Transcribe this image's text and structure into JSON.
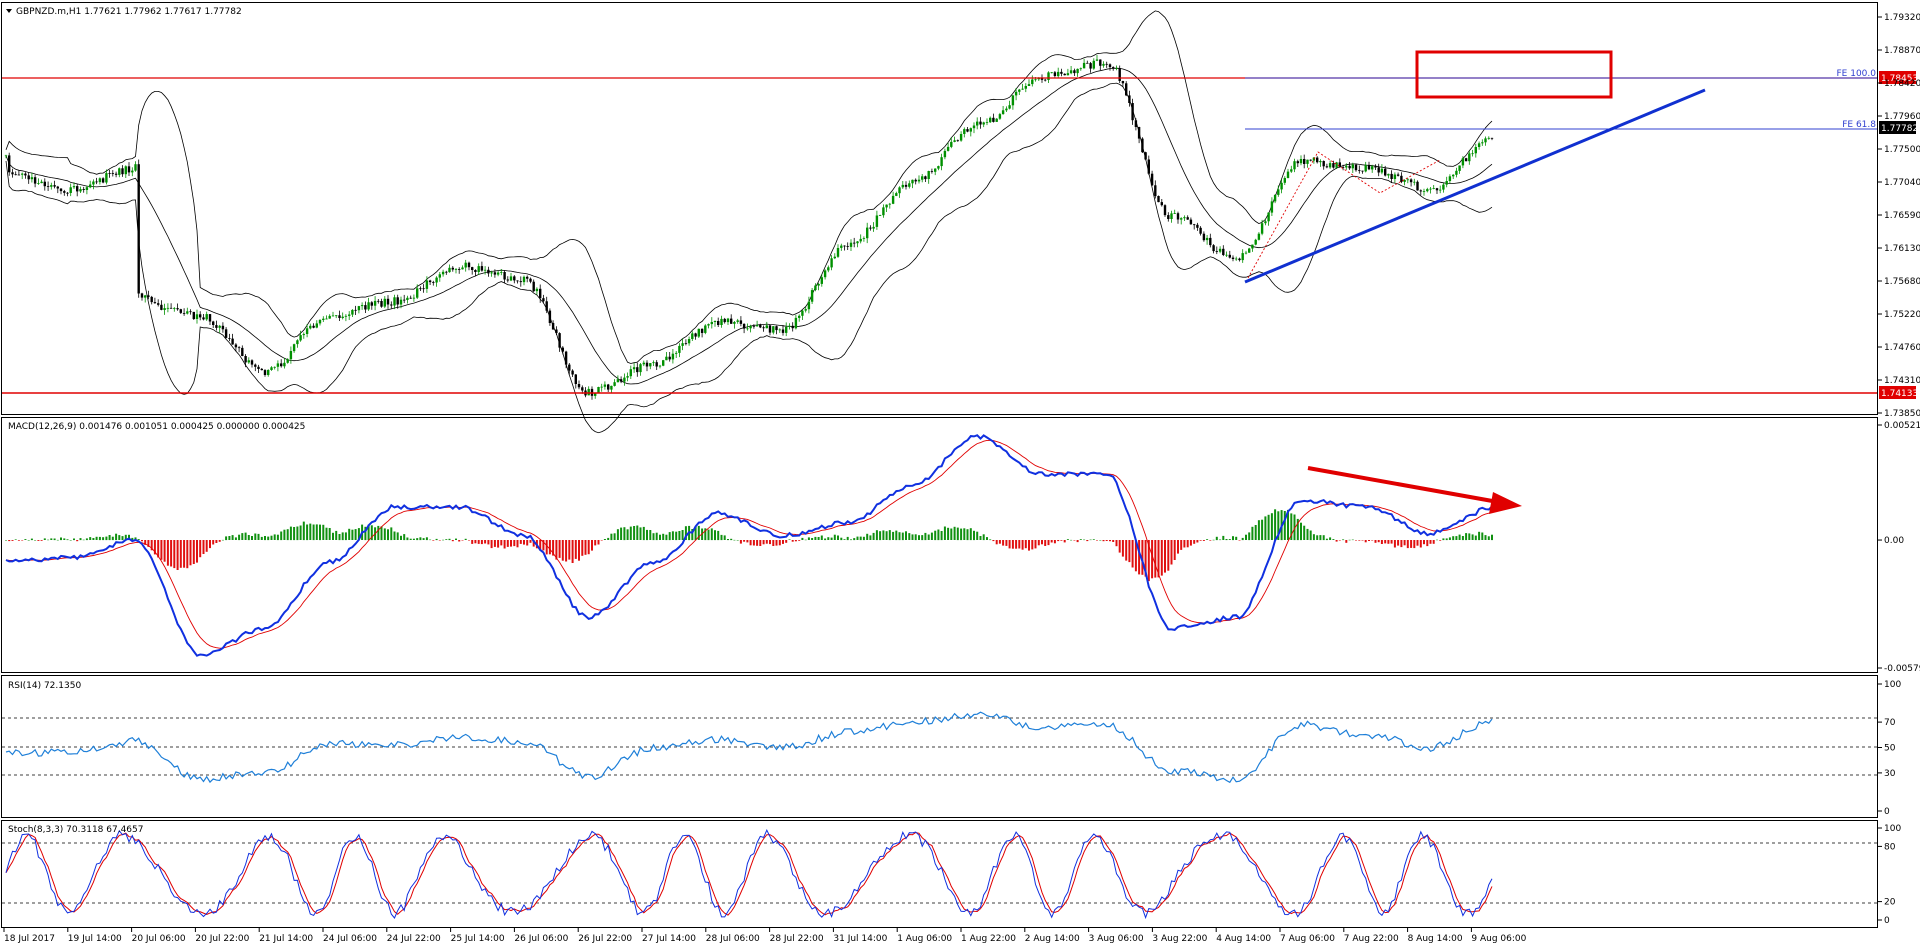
{
  "colors": {
    "background": "#ffffff",
    "axis": "#000000",
    "bull": "#009000",
    "bear": "#000000",
    "support_resistance": "#e00000",
    "trendline": "#1030d0",
    "fib_line": "#3040d0",
    "macd_line": "#1030e0",
    "signal_line": "#e00000",
    "hist_pos": "#109010",
    "hist_neg": "#e01010",
    "rsi_line": "#1e7fd8",
    "stoch_main": "#1030e0",
    "stoch_signal": "#e00000",
    "annotation": "#e00000",
    "bollinger": "#000000"
  },
  "main": {
    "title": "GBPNZD.m,H1  1.77621 1.77962 1.77617 1.77782",
    "y_ticks": [
      "1.79320",
      "1.78870",
      "1.78420",
      "1.77960",
      "1.77500",
      "1.77040",
      "1.76590",
      "1.76130",
      "1.75680",
      "1.75220",
      "1.74760",
      "1.74310",
      "1.73850"
    ],
    "level_labels": {
      "resistance": "1.78453",
      "current": "1.77782",
      "support": "1.74133"
    },
    "fib_labels": {
      "fe100": "FE 100.0",
      "fe618": "FE 61.8"
    }
  },
  "macd": {
    "title": "MACD(12,26,9) 0.001476 0.001051 0.000425 0.000000 0.000425",
    "y_ticks": [
      "0.005212",
      "0.00",
      "-0.005797"
    ]
  },
  "rsi": {
    "title": "RSI(14) 72.1350",
    "y_ticks": [
      "100",
      "70",
      "50",
      "30",
      "0"
    ]
  },
  "stoch": {
    "title": "Stoch(8,3,3) 70.3118 67.4657",
    "y_ticks": [
      "100",
      "80",
      "20",
      "0"
    ]
  },
  "x_ticks": [
    "18 Jul 2017",
    "19 Jul 14:00",
    "20 Jul 06:00",
    "20 Jul 22:00",
    "21 Jul 14:00",
    "24 Jul 06:00",
    "24 Jul 22:00",
    "25 Jul 14:00",
    "26 Jul 06:00",
    "26 Jul 22:00",
    "27 Jul 14:00",
    "28 Jul 06:00",
    "28 Jul 22:00",
    "31 Jul 14:00",
    "1 Aug 06:00",
    "1 Aug 22:00",
    "2 Aug 14:00",
    "3 Aug 06:00",
    "3 Aug 22:00",
    "4 Aug 14:00",
    "7 Aug 06:00",
    "7 Aug 22:00",
    "8 Aug 14:00",
    "9 Aug 06:00"
  ],
  "chart_data": {
    "type": "candlestick",
    "symbol": "GBPNZD.m",
    "timeframe": "H1",
    "ohlc_last": {
      "open": 1.77621,
      "high": 1.77962,
      "low": 1.77617,
      "close": 1.77782
    },
    "ylim": [
      1.7385,
      1.7955
    ],
    "horizontal_levels": {
      "resistance": 1.78453,
      "support": 1.74133
    },
    "fib_levels": {
      "FE 100.0": 1.78453,
      "FE 61.8": 1.7769
    },
    "close_path": [
      {
        "x": "18 Jul 2017",
        "y": 1.7745
      },
      {
        "x": "19 Jul 06:00",
        "y": 1.772
      },
      {
        "x": "19 Jul 14:00",
        "y": 1.77
      },
      {
        "x": "20 Jul 06:00",
        "y": 1.773
      },
      {
        "x": "20 Jul 14:00",
        "y": 1.764
      },
      {
        "x": "20 Jul 22:00",
        "y": 1.752
      },
      {
        "x": "21 Jul 14:00",
        "y": 1.744
      },
      {
        "x": "24 Jul 06:00",
        "y": 1.752
      },
      {
        "x": "24 Jul 22:00",
        "y": 1.754
      },
      {
        "x": "25 Jul 14:00",
        "y": 1.759
      },
      {
        "x": "26 Jul 06:00",
        "y": 1.757
      },
      {
        "x": "26 Jul 22:00",
        "y": 1.741
      },
      {
        "x": "27 Jul 14:00",
        "y": 1.745
      },
      {
        "x": "28 Jul 06:00",
        "y": 1.751
      },
      {
        "x": "28 Jul 22:00",
        "y": 1.75
      },
      {
        "x": "31 Jul 14:00",
        "y": 1.762
      },
      {
        "x": "1 Aug 06:00",
        "y": 1.771
      },
      {
        "x": "1 Aug 22:00",
        "y": 1.779
      },
      {
        "x": "2 Aug 14:00",
        "y": 1.786
      },
      {
        "x": "3 Aug 06:00",
        "y": 1.788
      },
      {
        "x": "3 Aug 22:00",
        "y": 1.766
      },
      {
        "x": "4 Aug 14:00",
        "y": 1.76
      },
      {
        "x": "7 Aug 06:00",
        "y": 1.774
      },
      {
        "x": "7 Aug 22:00",
        "y": 1.773
      },
      {
        "x": "8 Aug 14:00",
        "y": 1.77
      },
      {
        "x": "9 Aug 06:00",
        "y": 1.7778
      }
    ],
    "macd_path": [
      {
        "x": "18 Jul 2017",
        "y": -0.001
      },
      {
        "x": "19 Jul 14:00",
        "y": -0.0008
      },
      {
        "x": "20 Jul 06:00",
        "y": 0.0
      },
      {
        "x": "20 Jul 22:00",
        "y": -0.0052
      },
      {
        "x": "21 Jul 14:00",
        "y": -0.004
      },
      {
        "x": "24 Jul 06:00",
        "y": -0.001
      },
      {
        "x": "24 Jul 22:00",
        "y": 0.0015
      },
      {
        "x": "25 Jul 14:00",
        "y": 0.0015
      },
      {
        "x": "26 Jul 06:00",
        "y": 0.0002
      },
      {
        "x": "26 Jul 22:00",
        "y": -0.0035
      },
      {
        "x": "27 Jul 14:00",
        "y": -0.001
      },
      {
        "x": "28 Jul 06:00",
        "y": 0.0012
      },
      {
        "x": "28 Jul 22:00",
        "y": 0.0002
      },
      {
        "x": "31 Jul 14:00",
        "y": 0.0008
      },
      {
        "x": "1 Aug 06:00",
        "y": 0.0025
      },
      {
        "x": "1 Aug 22:00",
        "y": 0.0047
      },
      {
        "x": "2 Aug 14:00",
        "y": 0.003
      },
      {
        "x": "3 Aug 06:00",
        "y": 0.003
      },
      {
        "x": "3 Aug 22:00",
        "y": -0.004
      },
      {
        "x": "4 Aug 14:00",
        "y": -0.0035
      },
      {
        "x": "7 Aug 06:00",
        "y": 0.0018
      },
      {
        "x": "7 Aug 22:00",
        "y": 0.0015
      },
      {
        "x": "8 Aug 14:00",
        "y": 0.0003
      },
      {
        "x": "9 Aug 06:00",
        "y": 0.0015
      }
    ],
    "rsi_path": [
      {
        "x": "18 Jul 2017",
        "y": 45
      },
      {
        "x": "19 Jul 14:00",
        "y": 47
      },
      {
        "x": "20 Jul 06:00",
        "y": 55
      },
      {
        "x": "20 Jul 22:00",
        "y": 25
      },
      {
        "x": "21 Jul 14:00",
        "y": 30
      },
      {
        "x": "24 Jul 06:00",
        "y": 53
      },
      {
        "x": "24 Jul 22:00",
        "y": 52
      },
      {
        "x": "25 Jul 14:00",
        "y": 58
      },
      {
        "x": "26 Jul 06:00",
        "y": 55
      },
      {
        "x": "26 Jul 22:00",
        "y": 27
      },
      {
        "x": "27 Jul 14:00",
        "y": 50
      },
      {
        "x": "28 Jul 06:00",
        "y": 56
      },
      {
        "x": "28 Jul 22:00",
        "y": 50
      },
      {
        "x": "31 Jul 14:00",
        "y": 62
      },
      {
        "x": "1 Aug 06:00",
        "y": 70
      },
      {
        "x": "1 Aug 22:00",
        "y": 76
      },
      {
        "x": "2 Aug 14:00",
        "y": 66
      },
      {
        "x": "3 Aug 06:00",
        "y": 68
      },
      {
        "x": "3 Aug 22:00",
        "y": 32
      },
      {
        "x": "4 Aug 14:00",
        "y": 25
      },
      {
        "x": "7 Aug 06:00",
        "y": 68
      },
      {
        "x": "7 Aug 22:00",
        "y": 60
      },
      {
        "x": "8 Aug 14:00",
        "y": 50
      },
      {
        "x": "9 Aug 06:00",
        "y": 72
      }
    ]
  }
}
